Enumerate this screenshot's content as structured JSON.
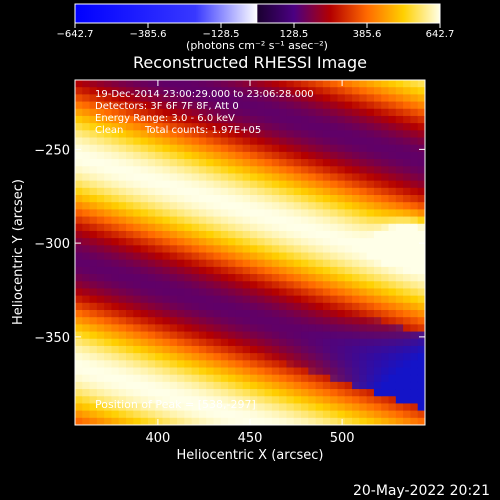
{
  "chart_data": {
    "type": "heatmap",
    "title": "Reconstructed RHESSI Image",
    "xlabel": "Heliocentric X (arcsec)",
    "ylabel": "Heliocentric Y (arcsec)",
    "xlim": [
      355,
      545
    ],
    "ylim": [
      -397,
      -213
    ],
    "x_ticks": [
      400,
      450,
      500
    ],
    "y_ticks": [
      -250,
      -300,
      -350
    ],
    "x_tick_labels": [
      "400",
      "450",
      "500"
    ],
    "y_tick_labels": [
      "−250",
      "−300",
      "−350"
    ],
    "colorbar": {
      "range": [
        -642.7,
        642.7
      ],
      "ticks": [
        -642.7,
        -385.6,
        -128.5,
        128.5,
        385.6,
        642.7
      ],
      "tick_labels": [
        "−642.7",
        "−385.6",
        "−128.5",
        "128.5",
        "385.6",
        "642.7"
      ],
      "units_label": "(photons cm⁻² s⁻¹ asec⁻²)",
      "colors": [
        "#0000ff",
        "#ffffff",
        "#4b0082",
        "#b40000",
        "#ff6a00",
        "#ffd000",
        "#ffffe8"
      ]
    },
    "annotations": {
      "time_range": "19-Dec-2014 23:00:29.000 to 23:06:28.000",
      "detectors": "Detectors: 3F 6F 7F 8F, Att 0",
      "energy_range": "Energy Range: 3.0 - 6.0 keV",
      "algorithm": "Clean",
      "total_counts": "Total counts: 1.97E+05",
      "peak": "Position of Peak = [538,-297]"
    },
    "peak_position": [
      538,
      -297
    ],
    "peak_value": 642.7
  },
  "footer": {
    "date": "20-May-2022 20:21"
  }
}
